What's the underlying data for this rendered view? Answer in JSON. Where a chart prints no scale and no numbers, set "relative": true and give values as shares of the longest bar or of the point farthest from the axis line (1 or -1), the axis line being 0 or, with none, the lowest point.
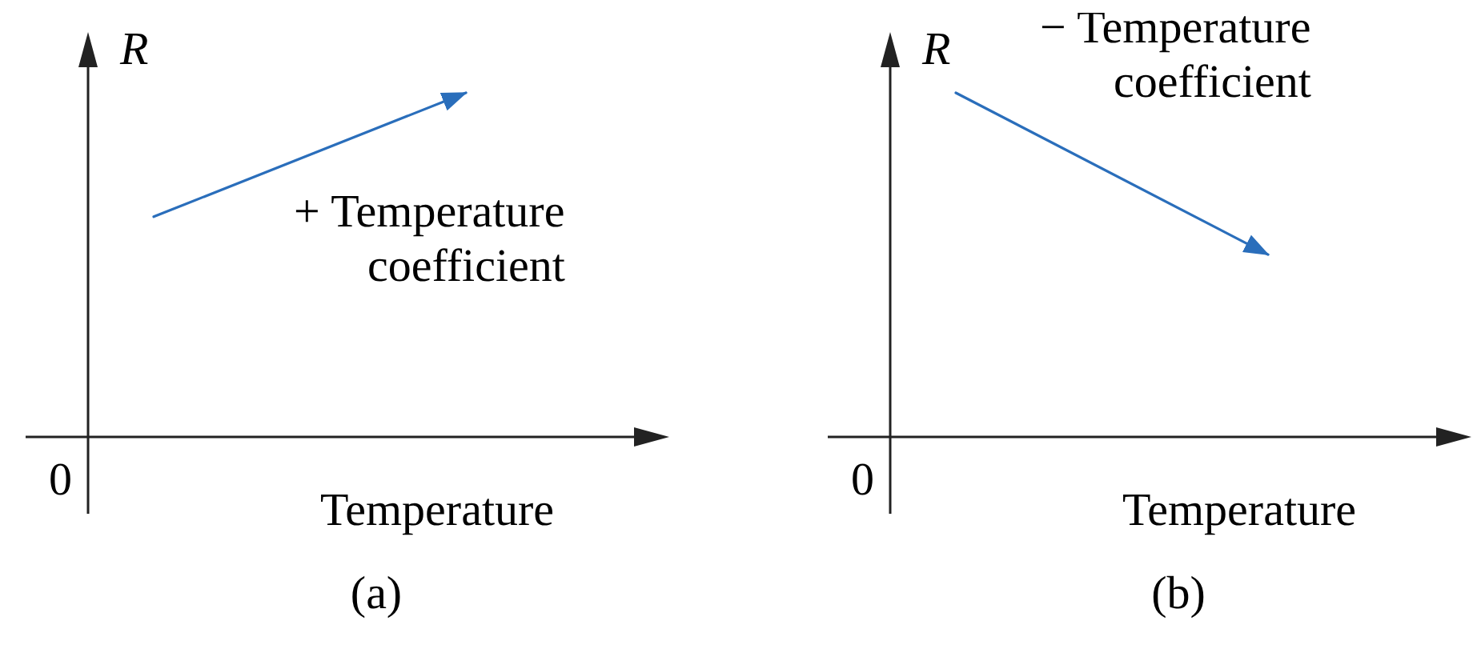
{
  "chart_data": [
    {
      "type": "line",
      "title": "(a)",
      "xlabel": "Temperature",
      "ylabel": "R",
      "relative": true,
      "categories": [
        null,
        null
      ],
      "series": [
        {
          "color": "#2a6ebb",
          "values": [
            0.64,
            1
          ]
        }
      ],
      "annotations": [
        "0",
        "+ Temperature coefficient"
      ]
    },
    {
      "type": "line",
      "title": "(b)",
      "xlabel": "Temperature",
      "ylabel": "R",
      "relative": true,
      "categories": [
        null,
        null
      ],
      "series": [
        {
          "color": "#2a6ebb",
          "values": [
            1,
            0.53
          ]
        }
      ],
      "annotations": [
        "0",
        "− Temperature coefficient"
      ]
    }
  ]
}
